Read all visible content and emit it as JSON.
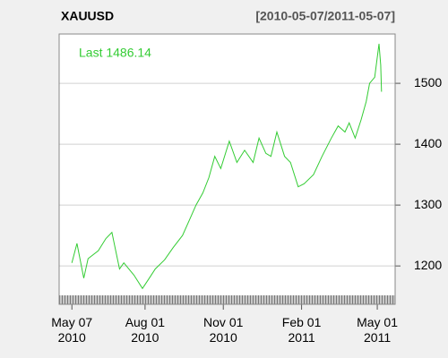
{
  "chart_data": {
    "type": "line",
    "title": "XAUUSD",
    "subtitle": "[2010-05-07/2011-05-07]",
    "annotation": "Last 1486.14",
    "color": "#33cc33",
    "x": [
      "2010-05-07",
      "2010-05-13",
      "2010-05-21",
      "2010-05-26",
      "2010-06-07",
      "2010-06-16",
      "2010-06-23",
      "2010-07-02",
      "2010-07-07",
      "2010-07-19",
      "2010-07-29",
      "2010-08-06",
      "2010-08-13",
      "2010-08-24",
      "2010-09-03",
      "2010-09-14",
      "2010-09-22",
      "2010-09-30",
      "2010-10-08",
      "2010-10-15",
      "2010-10-22",
      "2010-10-29",
      "2010-11-08",
      "2010-11-17",
      "2010-11-26",
      "2010-12-06",
      "2010-12-13",
      "2010-12-21",
      "2010-12-27",
      "2011-01-03",
      "2011-01-12",
      "2011-01-19",
      "2011-01-28",
      "2011-02-04",
      "2011-02-15",
      "2011-02-25",
      "2011-03-08",
      "2011-03-16",
      "2011-03-24",
      "2011-03-29",
      "2011-04-05",
      "2011-04-12",
      "2011-04-18",
      "2011-04-22",
      "2011-04-28",
      "2011-05-03",
      "2011-05-05",
      "2011-05-06"
    ],
    "values": [
      1205,
      1237,
      1180,
      1212,
      1225,
      1245,
      1255,
      1195,
      1205,
      1185,
      1163,
      1180,
      1195,
      1210,
      1230,
      1250,
      1275,
      1300,
      1320,
      1345,
      1380,
      1360,
      1405,
      1370,
      1390,
      1370,
      1410,
      1385,
      1380,
      1420,
      1380,
      1370,
      1330,
      1335,
      1350,
      1380,
      1410,
      1430,
      1420,
      1435,
      1410,
      1440,
      1470,
      1500,
      1510,
      1565,
      1530,
      1486.14
    ],
    "xlim": [
      "2010-04-22",
      "2011-05-22"
    ],
    "xticks": [
      {
        "value": "2010-05-07",
        "label": "May 07\n2010"
      },
      {
        "value": "2010-08-01",
        "label": "Aug 01\n2010"
      },
      {
        "value": "2010-11-01",
        "label": "Nov 01\n2010"
      },
      {
        "value": "2011-02-01",
        "label": "Feb 01\n2011"
      },
      {
        "value": "2011-05-01",
        "label": "May 01\n2011"
      }
    ],
    "ylim": [
      1137,
      1581
    ],
    "yticks": [
      1200,
      1300,
      1400,
      1500
    ],
    "grid": true
  }
}
